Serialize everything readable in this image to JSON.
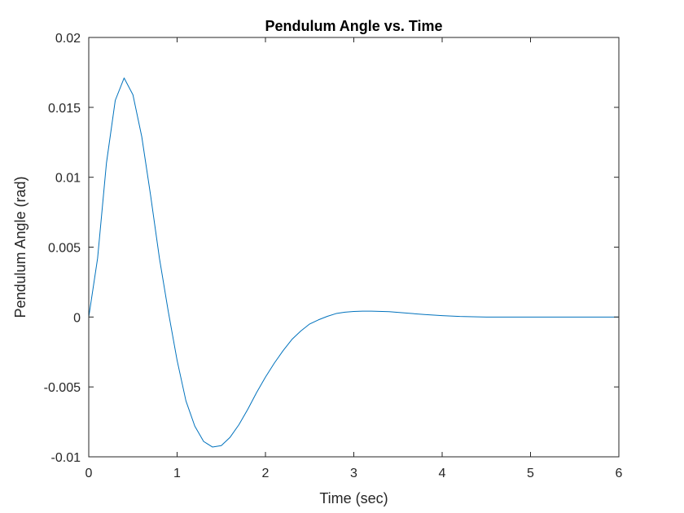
{
  "chart_data": {
    "type": "line",
    "title": "Pendulum Angle vs. Time",
    "xlabel": "Time (sec)",
    "ylabel": "Pendulum Angle (rad)",
    "xlim": [
      0,
      6
    ],
    "ylim": [
      -0.01,
      0.02
    ],
    "xticks": [
      0,
      1,
      2,
      3,
      4,
      5,
      6
    ],
    "xtick_labels": [
      "0",
      "1",
      "2",
      "3",
      "4",
      "5",
      "6"
    ],
    "yticks": [
      -0.01,
      -0.005,
      0,
      0.005,
      0.01,
      0.015,
      0.02
    ],
    "ytick_labels": [
      "-0.01",
      "-0.005",
      "0",
      "0.005",
      "0.01",
      "0.015",
      "0.02"
    ],
    "grid": false,
    "series": [
      {
        "color": "#0072BD",
        "x": [
          0,
          0.1,
          0.2,
          0.3,
          0.4,
          0.5,
          0.6,
          0.7,
          0.8,
          0.9,
          1.0,
          1.1,
          1.2,
          1.3,
          1.4,
          1.5,
          1.6,
          1.7,
          1.8,
          1.9,
          2.0,
          2.1,
          2.2,
          2.3,
          2.4,
          2.5,
          2.6,
          2.7,
          2.8,
          2.9,
          3.0,
          3.1,
          3.2,
          3.4,
          3.6,
          3.8,
          4.0,
          4.2,
          4.5,
          5.0,
          5.5,
          6.0
        ],
        "values": [
          0,
          0.0042,
          0.011,
          0.0155,
          0.0171,
          0.0159,
          0.0129,
          0.0087,
          0.0042,
          0.0004,
          -0.0031,
          -0.006,
          -0.0078,
          -0.0089,
          -0.0093,
          -0.0092,
          -0.0086,
          -0.0077,
          -0.0066,
          -0.0054,
          -0.0043,
          -0.0033,
          -0.0024,
          -0.0016,
          -0.001,
          -0.0005,
          -0.0002,
          5e-05,
          0.00025,
          0.00035,
          0.0004,
          0.00042,
          0.00042,
          0.00038,
          0.00028,
          0.00018,
          0.0001,
          4e-05,
          0.0,
          0.0,
          0.0,
          0.0
        ]
      }
    ]
  }
}
